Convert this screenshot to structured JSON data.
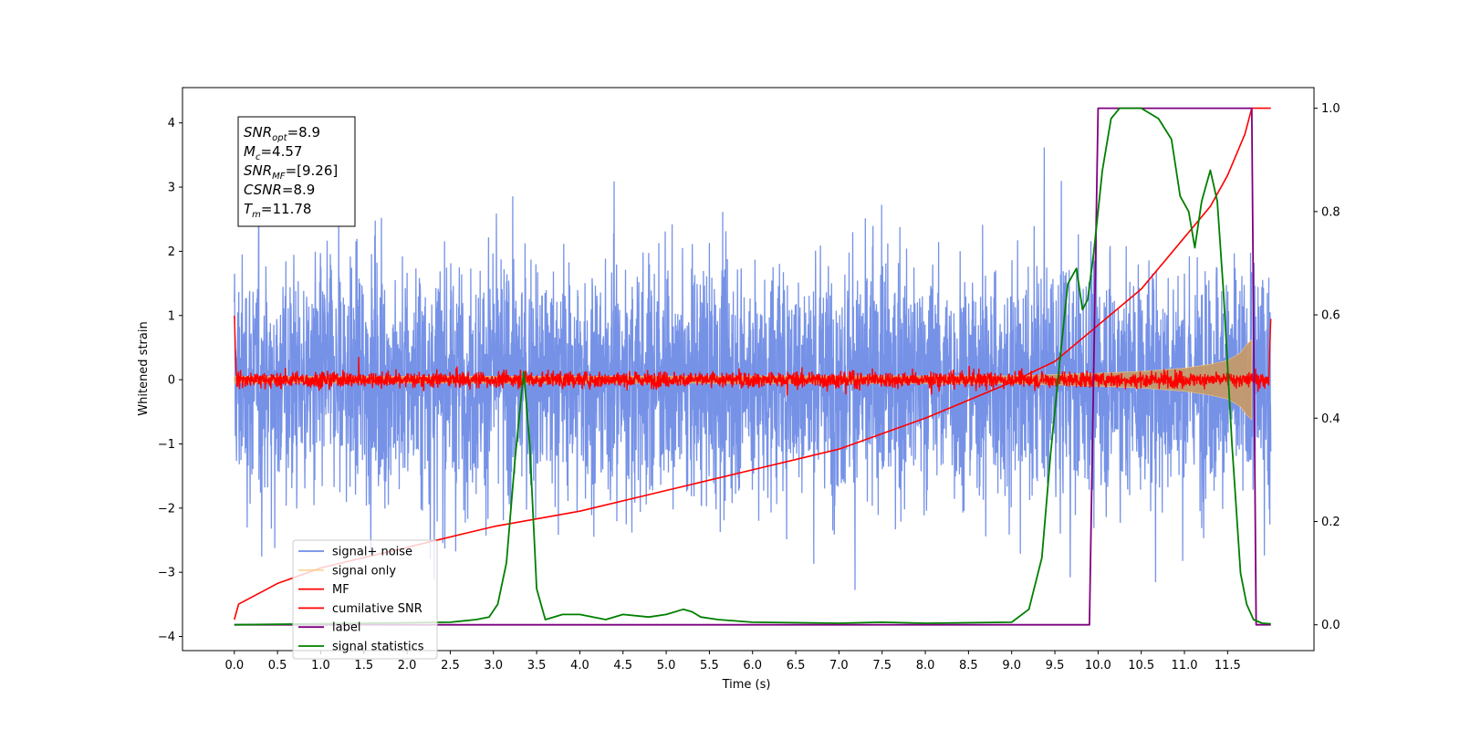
{
  "chart_data": {
    "type": "line",
    "xlabel": "Time (s)",
    "ylabel_left": "Whitened strain",
    "xlim": [
      -0.6,
      12.5
    ],
    "ylim_left": [
      -4.22,
      4.55
    ],
    "ylim_right": [
      -0.05,
      1.04
    ],
    "x_ticks": [
      "0.0",
      "0.5",
      "1.0",
      "1.5",
      "2.0",
      "2.5",
      "3.0",
      "3.5",
      "4.0",
      "4.5",
      "5.0",
      "5.5",
      "6.0",
      "6.5",
      "7.0",
      "7.5",
      "8.0",
      "8.5",
      "9.0",
      "9.5",
      "10.0",
      "10.5",
      "11.0",
      "11.5"
    ],
    "y_ticks_left": [
      "4",
      "3",
      "2",
      "1",
      "0",
      "−1",
      "−2",
      "−3",
      "−4"
    ],
    "y_ticks_right": [
      "1.0",
      "0.8",
      "0.6",
      "0.4",
      "0.2",
      "0.0"
    ],
    "grid": false,
    "legend_position": "lower-left",
    "legend": [
      {
        "name": "signal+ noise",
        "color": "#6f8ce6"
      },
      {
        "name": "signal only",
        "color": "#f6c97a"
      },
      {
        "name": "MF",
        "color": "#ff0000"
      },
      {
        "name": "cumilative SNR",
        "color": "#ff0000"
      },
      {
        "name": "label",
        "color": "#7f007f"
      },
      {
        "name": "signal statistics",
        "color": "#007f00"
      }
    ],
    "annotation": {
      "lines": [
        {
          "main": "SNR",
          "sub": "opt",
          "rest": "=8.9"
        },
        {
          "main": "M",
          "sub": "c",
          "rest": "=4.57"
        },
        {
          "main": "SNR",
          "sub": "MF",
          "rest": "=[9.26]"
        },
        {
          "main": "CSNR",
          "sub": "",
          "rest": "=8.9"
        },
        {
          "main": "T",
          "sub": "m",
          "rest": "=11.78"
        }
      ]
    },
    "noise": {
      "time_start": 0.0,
      "time_end": 12.0,
      "amplitude_typical": 1.6,
      "amplitude_peak": 4.15
    },
    "signal_only": {
      "t": [
        0,
        9.0,
        10.0,
        10.5,
        11.0,
        11.3,
        11.5,
        11.65,
        11.72,
        11.78
      ],
      "amplitude": [
        0.05,
        0.06,
        0.1,
        0.13,
        0.18,
        0.24,
        0.3,
        0.42,
        0.55,
        0.62
      ]
    },
    "mf": {
      "time_start": 0.0,
      "time_end": 12.0,
      "amplitude_typical": 0.1,
      "spike_start": 1.0,
      "spike_end": 0.95
    },
    "cumulative_snr": {
      "t": [
        0.0,
        0.05,
        0.5,
        1.0,
        2.0,
        3.0,
        4.0,
        5.0,
        6.0,
        7.0,
        8.0,
        9.0,
        9.5,
        10.0,
        10.5,
        11.0,
        11.3,
        11.5,
        11.7,
        11.78,
        12.0
      ],
      "values": [
        0.01,
        0.04,
        0.08,
        0.11,
        0.15,
        0.19,
        0.22,
        0.26,
        0.3,
        0.34,
        0.4,
        0.47,
        0.51,
        0.58,
        0.65,
        0.75,
        0.81,
        0.87,
        0.95,
        1.0,
        1.0
      ]
    },
    "label": {
      "t": [
        0.0,
        9.9,
        10.0,
        11.78,
        11.83,
        12.0
      ],
      "values": [
        0,
        0,
        1,
        1,
        0,
        0
      ]
    },
    "signal_statistics": {
      "t": [
        0.0,
        2.5,
        2.8,
        2.95,
        3.05,
        3.15,
        3.25,
        3.35,
        3.42,
        3.5,
        3.6,
        3.7,
        3.8,
        4.0,
        4.3,
        4.5,
        4.8,
        5.0,
        5.2,
        5.3,
        5.4,
        5.6,
        6.0,
        7.0,
        7.5,
        8.0,
        9.0,
        9.2,
        9.35,
        9.45,
        9.55,
        9.65,
        9.75,
        9.82,
        9.88,
        9.95,
        10.05,
        10.15,
        10.25,
        10.35,
        10.5,
        10.7,
        10.85,
        10.95,
        11.05,
        11.12,
        11.2,
        11.3,
        11.38,
        11.45,
        11.55,
        11.65,
        11.72,
        11.8,
        11.9,
        12.0
      ],
      "values": [
        0.0,
        0.005,
        0.01,
        0.015,
        0.04,
        0.12,
        0.32,
        0.49,
        0.35,
        0.07,
        0.01,
        0.015,
        0.02,
        0.02,
        0.01,
        0.02,
        0.015,
        0.02,
        0.03,
        0.025,
        0.015,
        0.01,
        0.005,
        0.003,
        0.005,
        0.003,
        0.005,
        0.03,
        0.13,
        0.33,
        0.5,
        0.66,
        0.69,
        0.61,
        0.63,
        0.72,
        0.88,
        0.98,
        1.0,
        1.0,
        1.0,
        0.98,
        0.94,
        0.83,
        0.8,
        0.73,
        0.82,
        0.88,
        0.82,
        0.65,
        0.35,
        0.1,
        0.04,
        0.01,
        0.003,
        0.002
      ]
    }
  }
}
